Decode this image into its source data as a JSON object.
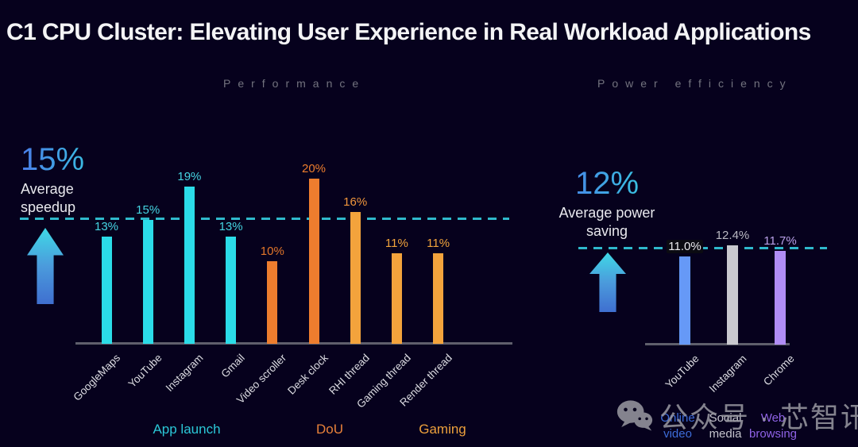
{
  "title": "C1 CPU Cluster: Elevating User Experience in Real Workload Applications",
  "watermark": {
    "icon": "wechat-icon",
    "text": "公众号 · 芯智讯"
  },
  "chart_data": [
    {
      "type": "bar",
      "title": "Performance",
      "annotation": {
        "value": "15%",
        "label": "Average speedup"
      },
      "reference_line": {
        "value": 15,
        "style": "dashed",
        "color": "#2fb9cc"
      },
      "categories": [
        "GoogleMaps",
        "YouTube",
        "Instagram",
        "Gmail",
        "Video scroller",
        "Desk clock",
        "RHI thread",
        "Gaming thread",
        "Render thread"
      ],
      "values": [
        13,
        15,
        19,
        13,
        10,
        20,
        16,
        11,
        11
      ],
      "value_labels": [
        "13%",
        "15%",
        "19%",
        "13%",
        "10%",
        "20%",
        "16%",
        "11%",
        "11%"
      ],
      "bar_colors": [
        "#2bdce8",
        "#2bdce8",
        "#2bdce8",
        "#2bdce8",
        "#ed7d2e",
        "#ed7d2e",
        "#f3a33c",
        "#f3a33c",
        "#f3a33c"
      ],
      "label_colors": [
        "#45d5e2",
        "#45d5e2",
        "#45d5e2",
        "#45d5e2",
        "#e4762a",
        "#ed7d2e",
        "#f0953c",
        "#f2a43c",
        "#f2a43c"
      ],
      "groups": [
        {
          "label": "App launch",
          "color": "#2bc8d8"
        },
        {
          "label": "DoU",
          "color": "#e8813a"
        },
        {
          "label": "Gaming",
          "color": "#eda03c"
        }
      ],
      "xlabel": "",
      "ylabel": "",
      "ylim": [
        0,
        22
      ],
      "grid": false,
      "legend": false
    },
    {
      "type": "bar",
      "title": "Power efficiency",
      "annotation": {
        "value": "12%",
        "label": "Average power saving"
      },
      "reference_line": {
        "value": 12,
        "style": "dashed",
        "color": "#2fb9cc"
      },
      "categories": [
        "YouTube",
        "Instagram",
        "Chrome"
      ],
      "values": [
        11.0,
        12.4,
        11.7
      ],
      "value_labels": [
        "11.0%",
        "12.4%",
        "11.7%"
      ],
      "bar_colors": [
        "#6699f7",
        "#c9c9cf",
        "#b08df5"
      ],
      "label_colors": [
        "#e8e8ec",
        "#b9b9c2",
        "#b9a0e8"
      ],
      "label_badges": [
        true,
        false,
        false
      ],
      "sub_labels": [
        {
          "text": "Online video",
          "color": "#3d6cd8"
        },
        {
          "text": "Social media",
          "color": "#c4c4cc"
        },
        {
          "text": "Web browsing",
          "color": "#8f63e6"
        }
      ],
      "xlabel": "",
      "ylabel": "",
      "ylim": [
        0,
        14
      ],
      "grid": false,
      "legend": false
    }
  ]
}
